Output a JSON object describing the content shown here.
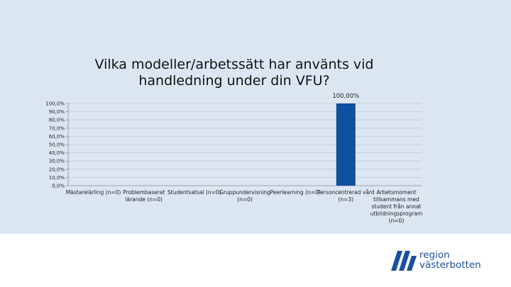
{
  "chart_data": {
    "type": "bar",
    "title": "Vilka modeller/arbetssätt har använts vid handledning under din VFU?",
    "categories": [
      "Mästarelärling (n=0)",
      "Problembaserat lärande (n=0)",
      "Studentsatsal (n=0)",
      "Gruppundervisning (n=0)",
      "Peerlearning (n=0)",
      "Personcentrerad vård (n=3)",
      "Arbetsmoment tillsammans med student från annat utbildningsprogram (n=0)"
    ],
    "values": [
      0,
      0,
      0,
      0,
      0,
      100,
      0
    ],
    "data_labels": [
      "",
      "",
      "",
      "",
      "",
      "100,00%",
      ""
    ],
    "y_ticks": [
      "0,0%",
      "10,0%",
      "20,0%",
      "30,0%",
      "40,0%",
      "50,0%",
      "60,0%",
      "70,0%",
      "80,0%",
      "90,0%",
      "100,0%"
    ],
    "ylim": [
      0,
      100
    ],
    "grid": true,
    "bar_color": "#0f4f9e"
  },
  "logo": {
    "line1": "region",
    "line2": "västerbotten",
    "color": "#1a4f9c"
  }
}
